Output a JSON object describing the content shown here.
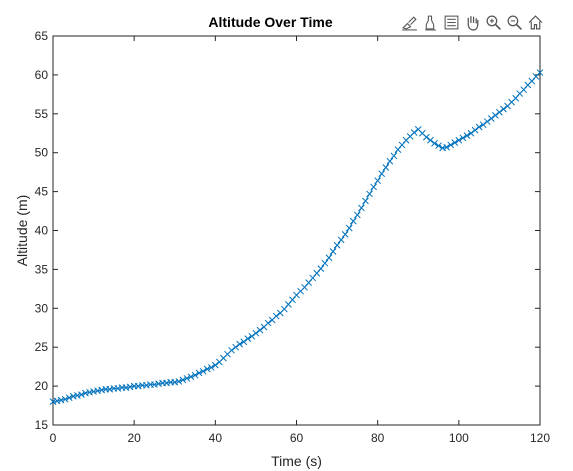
{
  "toolbar": {
    "icons": [
      "brush-edit-icon",
      "data-tips-icon",
      "legend-icon",
      "pan-hand-icon",
      "zoom-in-icon",
      "zoom-out-icon",
      "home-icon"
    ]
  },
  "colors": {
    "series": "#0072BD",
    "axes": "#262626",
    "background": "#ffffff"
  },
  "chart_data": {
    "type": "line",
    "title": "Altitude Over Time",
    "xlabel": "Time (s)",
    "ylabel": "Altitude (m)",
    "xlim": [
      0,
      120
    ],
    "ylim": [
      15,
      65
    ],
    "xticks": [
      0,
      20,
      40,
      60,
      80,
      100,
      120
    ],
    "yticks": [
      15,
      20,
      25,
      30,
      35,
      40,
      45,
      50,
      55,
      60,
      65
    ],
    "grid": false,
    "marker": "x",
    "series": [
      {
        "x": [
          0,
          1,
          2,
          3,
          4,
          5,
          6,
          7,
          8,
          9,
          10,
          11,
          12,
          13,
          14,
          15,
          16,
          17,
          18,
          19,
          20,
          21,
          22,
          23,
          24,
          25,
          26,
          27,
          28,
          29,
          30,
          31,
          32,
          33,
          34,
          35,
          36,
          37,
          38,
          39,
          40,
          41,
          42,
          43,
          44,
          45,
          46,
          47,
          48,
          49,
          50,
          51,
          52,
          53,
          54,
          55,
          56,
          57,
          58,
          59,
          60,
          61,
          62,
          63,
          64,
          65,
          66,
          67,
          68,
          69,
          70,
          71,
          72,
          73,
          74,
          75,
          76,
          77,
          78,
          79,
          80,
          81,
          82,
          83,
          84,
          85,
          86,
          87,
          88,
          89,
          90,
          91,
          92,
          93,
          94,
          95,
          96,
          97,
          98,
          99,
          100,
          101,
          102,
          103,
          104,
          105,
          106,
          107,
          108,
          109,
          110,
          111,
          112,
          113,
          114,
          115,
          116,
          117,
          118,
          119,
          120
        ],
        "y": [
          18.0,
          18.1,
          18.2,
          18.3,
          18.5,
          18.7,
          18.8,
          18.9,
          19.1,
          19.2,
          19.3,
          19.4,
          19.5,
          19.6,
          19.6,
          19.7,
          19.7,
          19.8,
          19.8,
          19.9,
          20.0,
          20.0,
          20.1,
          20.1,
          20.2,
          20.2,
          20.3,
          20.4,
          20.4,
          20.5,
          20.5,
          20.6,
          20.8,
          21.0,
          21.2,
          21.4,
          21.7,
          21.9,
          22.2,
          22.4,
          22.7,
          23.1,
          23.6,
          24.1,
          24.6,
          25.0,
          25.4,
          25.7,
          26.1,
          26.4,
          26.8,
          27.2,
          27.6,
          28.1,
          28.5,
          29.0,
          29.4,
          29.9,
          30.5,
          31.1,
          31.7,
          32.2,
          32.7,
          33.3,
          33.9,
          34.5,
          35.1,
          35.8,
          36.5,
          37.3,
          38.1,
          38.8,
          39.5,
          40.3,
          41.2,
          42.0,
          42.9,
          43.8,
          44.7,
          45.6,
          46.4,
          47.3,
          48.1,
          48.9,
          49.6,
          50.4,
          51.0,
          51.6,
          52.1,
          52.6,
          53.0,
          52.5,
          52.0,
          51.6,
          51.2,
          50.9,
          50.6,
          50.7,
          51.0,
          51.3,
          51.6,
          51.9,
          52.2,
          52.5,
          52.9,
          53.3,
          53.6,
          54.0,
          54.4,
          54.8,
          55.2,
          55.6,
          56.0,
          56.5,
          57.0,
          57.6,
          58.1,
          58.7,
          59.2,
          59.8,
          60.3
        ]
      }
    ]
  }
}
